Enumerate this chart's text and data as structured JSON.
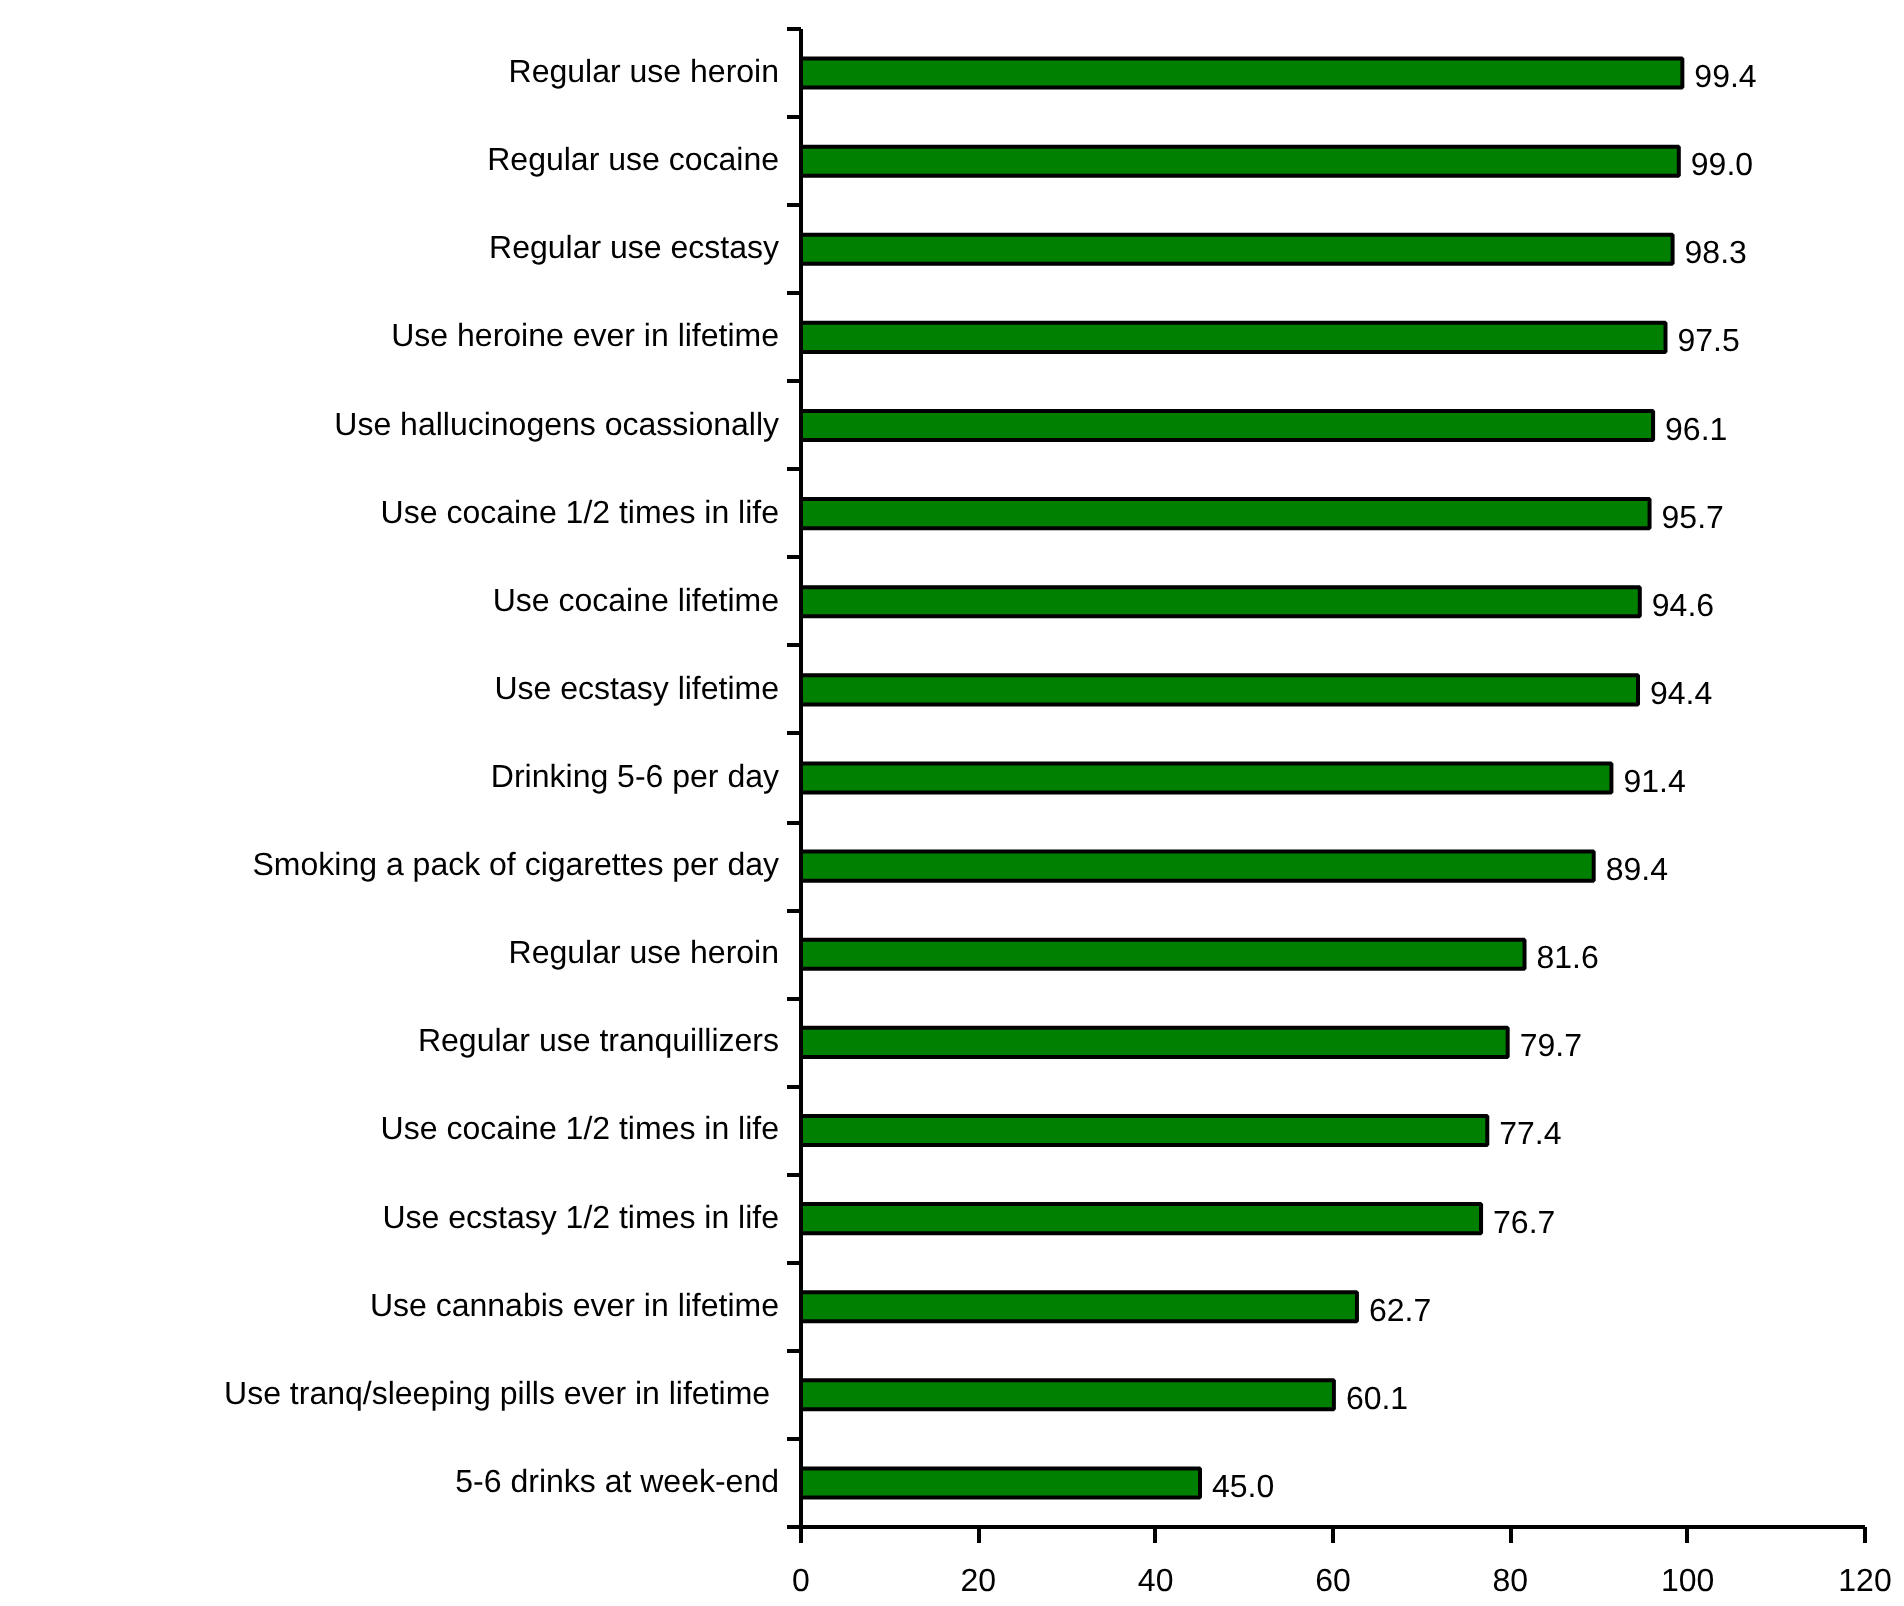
{
  "chart_data": {
    "type": "bar",
    "orientation": "horizontal",
    "categories": [
      "Regular use heroin",
      "Regular use cocaine",
      "Regular use ecstasy",
      "Use heroine ever in lifetime",
      "Use hallucinogens ocassionally",
      "Use cocaine 1/2 times in life",
      "Use cocaine lifetime",
      "Use ecstasy lifetime",
      "Drinking 5-6 per day",
      "Smoking a pack of cigarettes per day",
      "Regular use heroin",
      "Regular use tranquillizers",
      "Use cocaine 1/2 times in life",
      "Use ecstasy 1/2 times in life",
      "Use cannabis ever in lifetime",
      "Use tranq/sleeping pills  ever in lifetime",
      "5-6 drinks at week-end"
    ],
    "values": [
      99.4,
      99.0,
      98.3,
      97.5,
      96.1,
      95.7,
      94.6,
      94.4,
      91.4,
      89.4,
      81.6,
      79.7,
      77.4,
      76.7,
      62.7,
      60.1,
      45.0
    ],
    "value_labels": [
      "99.4",
      "99.0",
      "98.3",
      "97.5",
      "96.1",
      "95.7",
      "94.6",
      "94.4",
      "91.4",
      "89.4",
      "81.6",
      "79.7",
      "77.4",
      "76.7",
      "62.7",
      "60.1",
      "45.0"
    ],
    "color": "#008000",
    "xlim": [
      0,
      120
    ],
    "xticks": [
      0,
      20,
      40,
      60,
      80,
      100,
      120
    ],
    "grid": false
  }
}
